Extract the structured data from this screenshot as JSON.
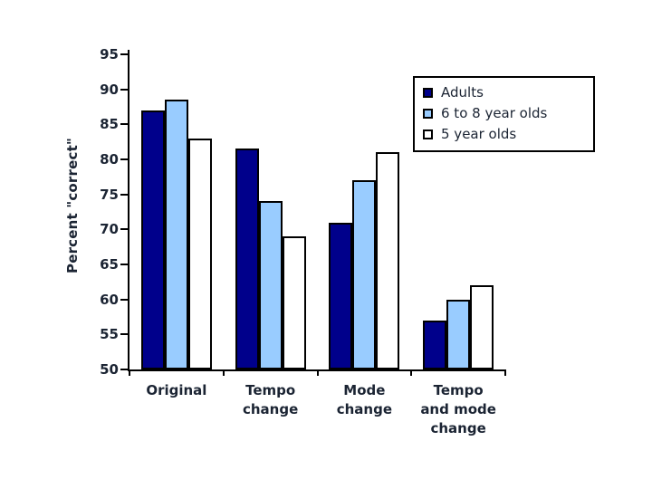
{
  "page": {
    "background": "#ffffff"
  },
  "chart_data": {
    "type": "bar",
    "title": "",
    "xlabel": "",
    "ylabel": "Percent \"correct\"",
    "categories": [
      "Original",
      "Tempo change",
      "Mode change",
      "Tempo and mode change"
    ],
    "series": [
      {
        "name": "Adults",
        "color": "#00008B",
        "values": [
          87,
          81.5,
          71,
          57
        ]
      },
      {
        "name": "6 to 8 year olds",
        "color": "#99CCFF",
        "values": [
          88.5,
          74,
          77,
          60
        ]
      },
      {
        "name": "5 year olds",
        "color": "#FFFFFF",
        "values": [
          83,
          69,
          81,
          62
        ]
      }
    ],
    "ylim": [
      50,
      95
    ],
    "yticks": [
      50,
      55,
      60,
      65,
      70,
      75,
      80,
      85,
      90,
      95
    ],
    "grid": false,
    "legend_position": "top-right",
    "bar_border_color": "#000000",
    "axis_color": "#000000",
    "text_color": "#1b2433"
  }
}
